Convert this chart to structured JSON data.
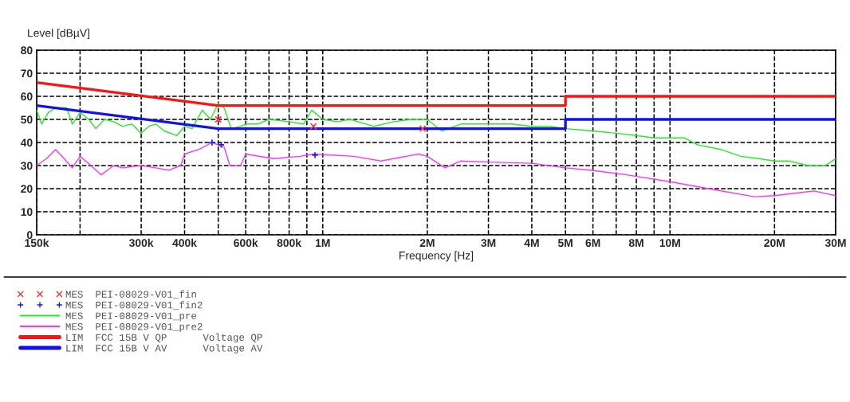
{
  "chart_data": {
    "type": "line",
    "ylabel": "Level [dBµV]",
    "xlabel": "Frequency [Hz]",
    "log": "x",
    "grid": true,
    "legend": "bottom",
    "line_style": "dashed",
    "xlim": [
      150000,
      30000000
    ],
    "ylim": [
      0,
      80
    ],
    "xticks": [
      {
        "value": 150000,
        "label": "150k"
      },
      {
        "value": 200000,
        "label": null
      },
      {
        "value": 300000,
        "label": "300k"
      },
      {
        "value": 400000,
        "label": "400k"
      },
      {
        "value": 500000,
        "label": null
      },
      {
        "value": 600000,
        "label": "600k"
      },
      {
        "value": 700000,
        "label": null
      },
      {
        "value": 800000,
        "label": "800k"
      },
      {
        "value": 900000,
        "label": null
      },
      {
        "value": 1000000,
        "label": "1M"
      },
      {
        "value": 2000000,
        "label": "2M"
      },
      {
        "value": 3000000,
        "label": "3M"
      },
      {
        "value": 4000000,
        "label": "4M"
      },
      {
        "value": 5000000,
        "label": "5M"
      },
      {
        "value": 6000000,
        "label": "6M"
      },
      {
        "value": 7000000,
        "label": null
      },
      {
        "value": 8000000,
        "label": "8M"
      },
      {
        "value": 9000000,
        "label": null
      },
      {
        "value": 10000000,
        "label": "10M"
      },
      {
        "value": 20000000,
        "label": "20M"
      },
      {
        "value": 30000000,
        "label": "30M"
      }
    ],
    "yticks": [
      0,
      10,
      20,
      30,
      40,
      50,
      60,
      70,
      80
    ],
    "series": [
      {
        "name": "MES  PEI-08029-V01_fin",
        "type": "scatter",
        "marker": "cross",
        "color": "#ff3333",
        "x": [
          500000,
          940000,
          1940000
        ],
        "values": [
          50,
          47,
          46
        ]
      },
      {
        "name": "MES  PEI-08029-V01_fin2",
        "type": "scatter",
        "marker": "plus",
        "color": "#1a1aff",
        "x": [
          480000,
          510000,
          950000
        ],
        "values": [
          40,
          39,
          34.5
        ]
      },
      {
        "name": "MES  PEI-08029-V01_pre",
        "line_style": "solid",
        "color": "#22ee22",
        "x": [
          150000,
          155000,
          162000,
          170000,
          183000,
          190000,
          200000,
          212000,
          222000,
          235000,
          250000,
          265000,
          282000,
          300000,
          315000,
          330000,
          350000,
          380000,
          400000,
          420000,
          450000,
          475000,
          500000,
          520000,
          545000,
          580000,
          600000,
          650000,
          700000,
          800000,
          880000,
          930000,
          1000000,
          1100000,
          1200000,
          1400000,
          1600000,
          1800000,
          2000000,
          2200000,
          2500000,
          3000000,
          3500000,
          4000000,
          4500000,
          5000000,
          6000000,
          7000000,
          8000000,
          9000000,
          10000000,
          11000000,
          12000000,
          14000000,
          16000000,
          18000000,
          20000000,
          22000000,
          25000000,
          28000000,
          30000000
        ],
        "values": [
          54,
          48,
          53,
          55,
          55,
          48,
          53,
          50,
          46,
          50,
          49,
          47,
          48,
          44,
          47,
          48,
          45,
          43,
          47,
          46,
          54,
          50,
          57,
          55,
          46,
          47,
          48,
          48,
          50,
          49,
          48,
          54,
          50,
          49,
          50,
          47,
          49,
          50,
          50,
          45,
          48,
          48,
          48,
          47,
          47,
          46,
          45,
          44,
          43,
          42,
          42,
          42,
          39,
          37,
          34,
          33,
          32,
          32,
          30,
          30,
          33
        ]
      },
      {
        "name": "MES  PEI-08029-V01_pre2",
        "line_style": "solid",
        "color": "#ff33ff",
        "x": [
          150000,
          160000,
          170000,
          180000,
          190000,
          200000,
          215000,
          230000,
          250000,
          265000,
          300000,
          330000,
          360000,
          390000,
          400000,
          440000,
          480000,
          520000,
          540000,
          580000,
          600000,
          720000,
          860000,
          940000,
          1230000,
          1470000,
          1890000,
          2000000,
          2250000,
          2500000,
          3020000,
          4000000,
          5000000,
          5900000,
          7500000,
          10000000,
          13500000,
          17500000,
          20000000,
          26000000,
          30000000
        ],
        "values": [
          30,
          33,
          37,
          33,
          29,
          34,
          30,
          26,
          30,
          29,
          30,
          29,
          28,
          30,
          35,
          37,
          40,
          38,
          30,
          30,
          35,
          33,
          34,
          35,
          34,
          32,
          35,
          34,
          29,
          32,
          31.5,
          31,
          29,
          28,
          26,
          23,
          19.5,
          16.5,
          17,
          19,
          17
        ]
      },
      {
        "name": "LIM  FCC 15B V QP      Voltage QP",
        "line_style": "solid",
        "color": "#ff1111",
        "x": [
          150000,
          500000,
          500000,
          5000000,
          5000000,
          30000000
        ],
        "values": [
          66,
          56,
          56,
          56,
          60,
          60
        ]
      },
      {
        "name": "LIM  FCC 15B V AV      Voltage AV",
        "line_style": "solid",
        "color": "#1111ee",
        "x": [
          150000,
          500000,
          500000,
          5000000,
          5000000,
          30000000
        ],
        "values": [
          56,
          46,
          46,
          46,
          50,
          50
        ]
      }
    ]
  }
}
